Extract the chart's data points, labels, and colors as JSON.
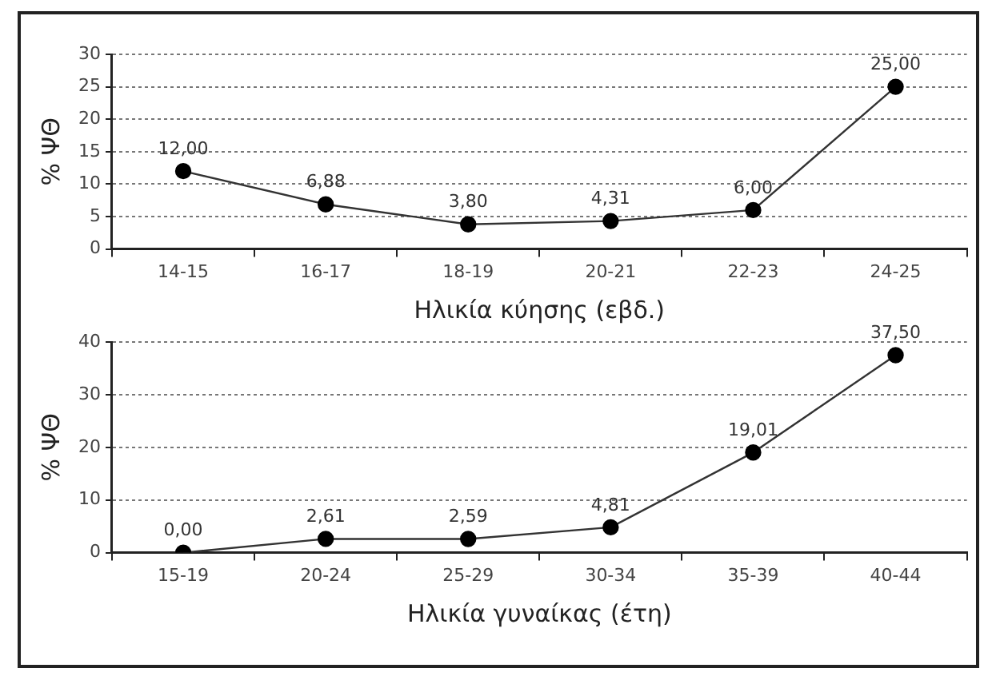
{
  "chart_data": [
    {
      "type": "line",
      "xlabel": "Ηλικία κύησης (εβδ.)",
      "ylabel": "% ΨΘ",
      "categories": [
        "14-15",
        "16-17",
        "18-19",
        "20-21",
        "22-23",
        "24-25"
      ],
      "series": [
        {
          "color": "#333333",
          "values": [
            12.0,
            6.88,
            3.8,
            4.31,
            6.0,
            25.0
          ],
          "value_labels": [
            "12,00",
            "6,88",
            "3,80",
            "4,31",
            "6,00",
            "25,00"
          ]
        }
      ],
      "ylim": [
        0,
        30
      ],
      "yticks": [
        0,
        5,
        10,
        15,
        20,
        25,
        30
      ],
      "grid": "y",
      "legend": false,
      "marker": "circle",
      "line_style": "solid"
    },
    {
      "type": "line",
      "xlabel": "Ηλικία γυναίκας (έτη)",
      "ylabel": "% ΨΘ",
      "categories": [
        "15-19",
        "20-24",
        "25-29",
        "30-34",
        "35-39",
        "40-44"
      ],
      "series": [
        {
          "color": "#333333",
          "values": [
            0.0,
            2.61,
            2.59,
            4.81,
            19.01,
            37.5
          ],
          "value_labels": [
            "0,00",
            "2,61",
            "2,59",
            "4,81",
            "19,01",
            "37,50"
          ]
        }
      ],
      "ylim": [
        0,
        40
      ],
      "yticks": [
        0,
        10,
        20,
        30,
        40
      ],
      "grid": "y",
      "legend": false,
      "marker": "circle",
      "line_style": "solid"
    }
  ]
}
